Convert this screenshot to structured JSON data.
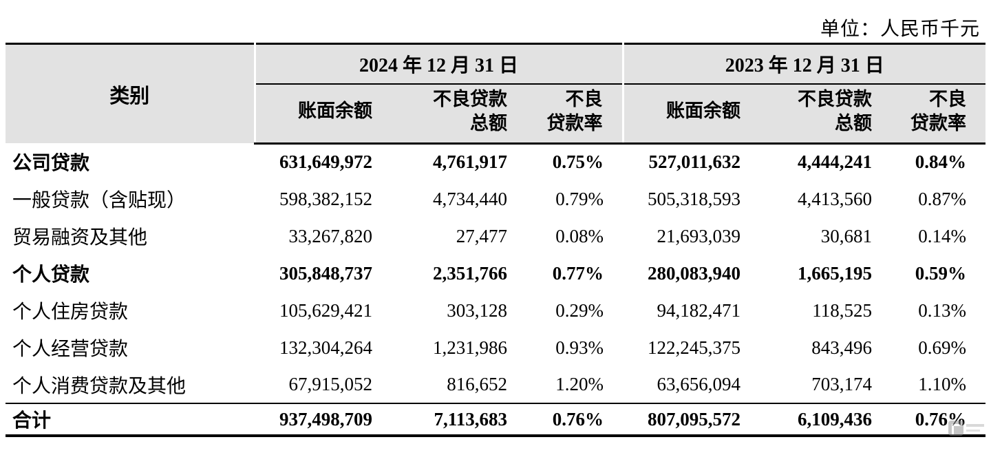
{
  "unit_label": "单位：人民币千元",
  "table": {
    "category_header": "类别",
    "periods": [
      {
        "label": "2024 年 12 月 31 日"
      },
      {
        "label": "2023 年 12 月 31 日"
      }
    ],
    "sub_headers": {
      "balance": "账面余额",
      "npl_total": "不良贷款\n总额",
      "npl_ratio": "不良\n贷款率"
    },
    "rows": [
      {
        "category": "公司贷款",
        "cells": [
          "631,649,972",
          "4,761,917",
          "0.75%",
          "527,011,632",
          "4,444,241",
          "0.84%"
        ]
      },
      {
        "category": "一般贷款（含贴现）",
        "cells": [
          "598,382,152",
          "4,734,440",
          "0.79%",
          "505,318,593",
          "4,413,560",
          "0.87%"
        ]
      },
      {
        "category": "贸易融资及其他",
        "cells": [
          "33,267,820",
          "27,477",
          "0.08%",
          "21,693,039",
          "30,681",
          "0.14%"
        ]
      },
      {
        "category": "个人贷款",
        "cells": [
          "305,848,737",
          "2,351,766",
          "0.77%",
          "280,083,940",
          "1,665,195",
          "0.59%"
        ]
      },
      {
        "category": "个人住房贷款",
        "cells": [
          "105,629,421",
          "303,128",
          "0.29%",
          "94,182,471",
          "118,525",
          "0.13%"
        ]
      },
      {
        "category": "个人经营贷款",
        "cells": [
          "132,304,264",
          "1,231,986",
          "0.93%",
          "122,245,375",
          "843,496",
          "0.69%"
        ]
      },
      {
        "category": "个人消费贷款及其他",
        "cells": [
          "67,915,052",
          "816,652",
          "1.20%",
          "63,656,094",
          "703,174",
          "1.10%"
        ]
      },
      {
        "category": "合计",
        "cells": [
          "937,498,709",
          "7,113,683",
          "0.76%",
          "807,095,572",
          "6,109,436",
          "0.76%"
        ]
      }
    ]
  }
}
